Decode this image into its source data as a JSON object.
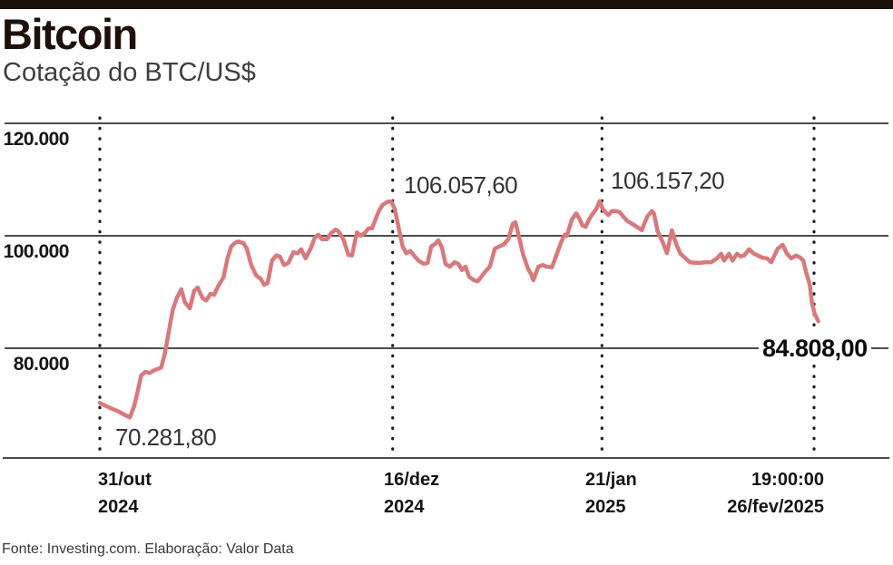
{
  "header": {
    "title": "Bitcoin",
    "subtitle": "Cotação do BTC/US$"
  },
  "footer": {
    "source": "Fonte: Investing.com. Elaboração: Valor Data"
  },
  "chart_data": {
    "type": "line",
    "title": "Bitcoin",
    "subtitle": "Cotação do BTC/US$",
    "xlabel": "",
    "ylabel": "",
    "unit": "US$",
    "line_color": "#d8797c",
    "grid_color": "#4d4d4d",
    "dotted_line_color": "#1c1c1c",
    "legend": [],
    "grid": "horizontal-solid, vertical-dotted",
    "ylim": [
      60000,
      122000
    ],
    "y_ticks": [
      {
        "label": "120.000",
        "value": 120000
      },
      {
        "label": "100.000",
        "value": 100000
      },
      {
        "label": "80.000",
        "value": 80000
      }
    ],
    "x_ticks": [
      {
        "line1": "31/out",
        "line2": "2024",
        "pct": 0
      },
      {
        "line1": "16/dez",
        "line2": "2024",
        "pct": 41.0
      },
      {
        "line1": "21/jan",
        "line2": "2025",
        "pct": 70.3
      },
      {
        "line1": "19:00:00",
        "line2": "26/fev/2025",
        "pct": 100
      }
    ],
    "annotations": [
      {
        "label": "70.281,80",
        "value": 70281.8,
        "at": "31/out/2024",
        "bold": false
      },
      {
        "label": "106.057,60",
        "value": 106057.6,
        "at": "16/dez/2024",
        "bold": false
      },
      {
        "label": "106.157,20",
        "value": 106157.2,
        "at": "21/jan/2025",
        "bold": false
      },
      {
        "label": "84.808,00",
        "value": 84808.0,
        "at": "26/fev/2025 19:00:00",
        "bold": true
      }
    ],
    "series": [
      {
        "name": "BTC/US$",
        "points": [
          [
            0,
            70282
          ],
          [
            0.9,
            69700
          ],
          [
            1.8,
            69200
          ],
          [
            2.7,
            68700
          ],
          [
            3.4,
            68200
          ],
          [
            4.2,
            67700
          ],
          [
            4.8,
            69700
          ],
          [
            5.3,
            72300
          ],
          [
            5.8,
            75200
          ],
          [
            6.4,
            75800
          ],
          [
            7,
            75600
          ],
          [
            7.6,
            76100
          ],
          [
            8.1,
            76300
          ],
          [
            8.6,
            76600
          ],
          [
            9.1,
            79000
          ],
          [
            9.7,
            83200
          ],
          [
            10.2,
            86800
          ],
          [
            10.8,
            89000
          ],
          [
            11.4,
            90500
          ],
          [
            11.9,
            88200
          ],
          [
            12.6,
            87100
          ],
          [
            13.2,
            90200
          ],
          [
            13.7,
            90800
          ],
          [
            14.4,
            88900
          ],
          [
            14.9,
            88500
          ],
          [
            15.5,
            89700
          ],
          [
            16,
            89500
          ],
          [
            16.6,
            91100
          ],
          [
            17.3,
            92600
          ],
          [
            17.9,
            96100
          ],
          [
            18.4,
            98100
          ],
          [
            18.9,
            98700
          ],
          [
            19.4,
            99000
          ],
          [
            20.1,
            98700
          ],
          [
            20.6,
            97700
          ],
          [
            21.2,
            94800
          ],
          [
            21.9,
            92900
          ],
          [
            22.5,
            92400
          ],
          [
            23,
            91300
          ],
          [
            23.5,
            91600
          ],
          [
            24.1,
            95600
          ],
          [
            24.7,
            96500
          ],
          [
            25.2,
            96300
          ],
          [
            25.8,
            94800
          ],
          [
            26.4,
            95200
          ],
          [
            27.1,
            97100
          ],
          [
            27.7,
            96900
          ],
          [
            28.2,
            97600
          ],
          [
            28.8,
            96000
          ],
          [
            29.5,
            97700
          ],
          [
            30.1,
            99700
          ],
          [
            30.6,
            100200
          ],
          [
            31.1,
            99400
          ],
          [
            31.8,
            99400
          ],
          [
            32.4,
            100500
          ],
          [
            33,
            101100
          ],
          [
            33.4,
            100800
          ],
          [
            34.1,
            99400
          ],
          [
            34.8,
            96600
          ],
          [
            35.3,
            96500
          ],
          [
            36,
            100600
          ],
          [
            36.5,
            100000
          ],
          [
            37.1,
            100500
          ],
          [
            37.6,
            101300
          ],
          [
            38.1,
            101300
          ],
          [
            38.6,
            102900
          ],
          [
            39.1,
            104500
          ],
          [
            39.6,
            105500
          ],
          [
            40.3,
            106058
          ],
          [
            40.8,
            106100
          ],
          [
            41.3,
            104800
          ],
          [
            41.9,
            101000
          ],
          [
            42.4,
            98100
          ],
          [
            42.9,
            96900
          ],
          [
            43.5,
            97300
          ],
          [
            44.1,
            96300
          ],
          [
            44.7,
            95500
          ],
          [
            45.4,
            95000
          ],
          [
            45.9,
            95200
          ],
          [
            46.4,
            98100
          ],
          [
            46.9,
            98500
          ],
          [
            47.4,
            99200
          ],
          [
            47.9,
            97900
          ],
          [
            48.4,
            95000
          ],
          [
            49,
            94500
          ],
          [
            49.7,
            95300
          ],
          [
            50.2,
            95000
          ],
          [
            50.7,
            93900
          ],
          [
            51.2,
            94500
          ],
          [
            51.7,
            92700
          ],
          [
            52.4,
            92100
          ],
          [
            52.9,
            91900
          ],
          [
            53.4,
            92700
          ],
          [
            54,
            93700
          ],
          [
            54.6,
            94500
          ],
          [
            55.3,
            97700
          ],
          [
            55.9,
            98100
          ],
          [
            56.5,
            98400
          ],
          [
            57.2,
            99400
          ],
          [
            57.8,
            102100
          ],
          [
            58.2,
            102400
          ],
          [
            58.8,
            99200
          ],
          [
            59.3,
            96500
          ],
          [
            60,
            94000
          ],
          [
            60.4,
            93200
          ],
          [
            60.7,
            92100
          ],
          [
            61.4,
            94500
          ],
          [
            62,
            94800
          ],
          [
            62.6,
            94500
          ],
          [
            63.3,
            94400
          ],
          [
            64,
            96800
          ],
          [
            64.6,
            98900
          ],
          [
            65.1,
            100200
          ],
          [
            65.4,
            100000
          ],
          [
            66.1,
            102900
          ],
          [
            66.7,
            104000
          ],
          [
            67.2,
            102900
          ],
          [
            67.6,
            101800
          ],
          [
            68,
            101600
          ],
          [
            68.5,
            102900
          ],
          [
            68.9,
            103700
          ],
          [
            69.5,
            104800
          ],
          [
            70,
            106157
          ],
          [
            70.4,
            104800
          ],
          [
            70.8,
            104200
          ],
          [
            71.2,
            103700
          ],
          [
            71.7,
            104400
          ],
          [
            72.2,
            104400
          ],
          [
            72.8,
            104200
          ],
          [
            73.3,
            103400
          ],
          [
            73.8,
            102700
          ],
          [
            74.3,
            102300
          ],
          [
            74.8,
            101900
          ],
          [
            75.3,
            101500
          ],
          [
            75.9,
            101000
          ],
          [
            76.2,
            102100
          ],
          [
            76.7,
            103500
          ],
          [
            77.3,
            104400
          ],
          [
            77.6,
            103900
          ],
          [
            78.1,
            100800
          ],
          [
            78.8,
            98900
          ],
          [
            79.4,
            96900
          ],
          [
            80.1,
            101000
          ],
          [
            80.7,
            98500
          ],
          [
            81.3,
            96800
          ],
          [
            82,
            96000
          ],
          [
            82.6,
            95300
          ],
          [
            83.4,
            95200
          ],
          [
            84.1,
            95200
          ],
          [
            84.9,
            95300
          ],
          [
            85.6,
            95300
          ],
          [
            86.4,
            96000
          ],
          [
            87,
            96800
          ],
          [
            87.4,
            95600
          ],
          [
            88.1,
            96800
          ],
          [
            88.6,
            95600
          ],
          [
            89.2,
            96800
          ],
          [
            89.7,
            96300
          ],
          [
            90.2,
            96500
          ],
          [
            90.9,
            97600
          ],
          [
            91.5,
            96900
          ],
          [
            92.1,
            96500
          ],
          [
            92.8,
            96100
          ],
          [
            93.4,
            96000
          ],
          [
            94,
            95300
          ],
          [
            94.9,
            97700
          ],
          [
            95.6,
            98400
          ],
          [
            96.2,
            96800
          ],
          [
            96.8,
            96000
          ],
          [
            97.5,
            96500
          ],
          [
            98.1,
            96100
          ],
          [
            98.5,
            95600
          ],
          [
            98.9,
            93500
          ],
          [
            99.4,
            91300
          ],
          [
            99.7,
            88100
          ],
          [
            100.1,
            86100
          ],
          [
            100.6,
            84808
          ]
        ]
      }
    ]
  }
}
